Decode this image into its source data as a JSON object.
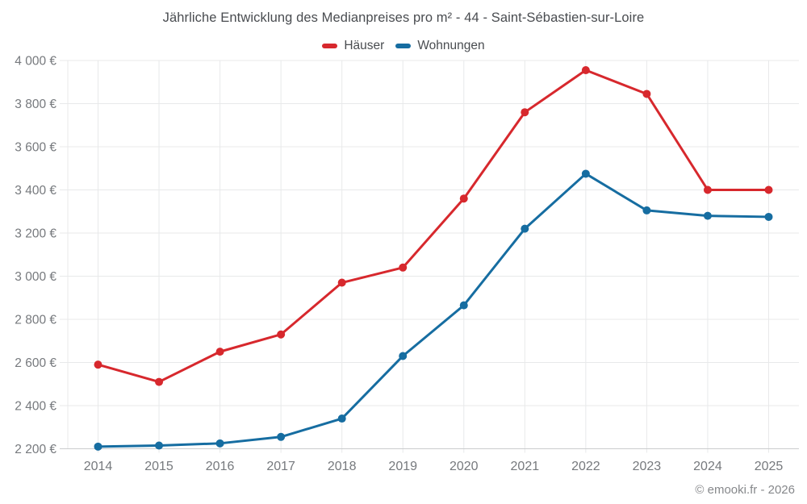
{
  "title": "Jährliche Entwicklung des Medianpreises pro m² - 44 - Saint-Sébastien-sur-Loire",
  "legend": {
    "items": [
      {
        "key": "haeuser",
        "label": "Häuser",
        "color": "#d7282d"
      },
      {
        "key": "wohnungen",
        "label": "Wohnungen",
        "color": "#166da1"
      }
    ]
  },
  "footer": {
    "credit": "© emooki.fr - 2026"
  },
  "chart_data": {
    "type": "line",
    "title": "Jährliche Entwicklung des Medianpreises pro m² - 44 - Saint-Sébastien-sur-Loire",
    "x": [
      2014,
      2015,
      2016,
      2017,
      2018,
      2019,
      2020,
      2021,
      2022,
      2023,
      2024,
      2025
    ],
    "series": [
      {
        "key": "haeuser",
        "name": "Häuser",
        "color": "#d7282d",
        "values": [
          2590,
          2510,
          2650,
          2730,
          2970,
          3040,
          3360,
          3760,
          3955,
          3845,
          3400,
          3400
        ]
      },
      {
        "key": "wohnungen",
        "name": "Wohnungen",
        "color": "#166da1",
        "values": [
          2210,
          2215,
          2225,
          2255,
          2340,
          2630,
          2865,
          3220,
          3475,
          3305,
          3280,
          3275
        ]
      }
    ],
    "xlabel": "",
    "ylabel": "",
    "ylim": [
      2200,
      4000
    ],
    "yticks": [
      2200,
      2400,
      2600,
      2800,
      3000,
      3200,
      3400,
      3600,
      3800,
      4000
    ],
    "ytick_labels": [
      "2 200 €",
      "2 400 €",
      "2 600 €",
      "2 800 €",
      "3 000 €",
      "3 200 €",
      "3 400 €",
      "3 600 €",
      "3 800 €",
      "4 000 €"
    ],
    "currency_suffix": "€",
    "grid": true,
    "legend_position": "top",
    "grid_color": "#e8e9ea",
    "axis_line_color": "#cacccd",
    "tick_label_color": "#76797d"
  }
}
